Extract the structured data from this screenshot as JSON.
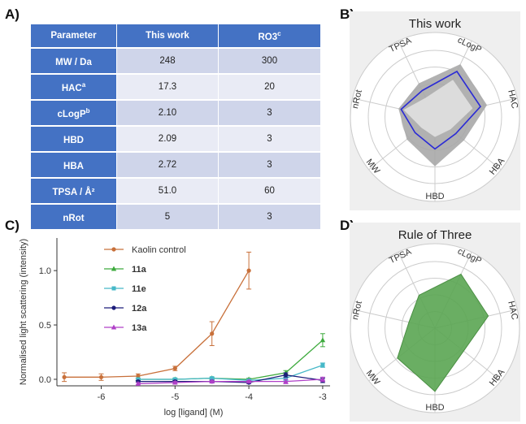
{
  "panels": {
    "a": "A)",
    "b": "B)",
    "c": "C)",
    "d": "D)"
  },
  "table": {
    "headers": [
      "Parameter",
      "This work",
      "RO3c"
    ],
    "header_parts": {
      "ro3_base": "RO3",
      "ro3_sup": "c"
    },
    "rows": [
      {
        "param": "MW / Da",
        "sup": "",
        "this_work": "248",
        "ro3": "300"
      },
      {
        "param": "HAC",
        "sup": "a",
        "this_work": "17.3",
        "ro3": "20"
      },
      {
        "param": "cLogP",
        "sup": "b",
        "this_work": "2.10",
        "ro3": "3"
      },
      {
        "param": "HBD",
        "sup": "",
        "this_work": "2.09",
        "ro3": "3"
      },
      {
        "param": "HBA",
        "sup": "",
        "this_work": "2.72",
        "ro3": "3"
      },
      {
        "param": "TPSA / Å²",
        "sup": "",
        "this_work": "51.0",
        "ro3": "60"
      },
      {
        "param": "nRot",
        "sup": "",
        "this_work": "5",
        "ro3": "3"
      }
    ],
    "colors": {
      "header": "#4472c4",
      "row_dark": "#cfd5ea",
      "row_light": "#e9ebf5"
    }
  },
  "chart_data": [
    {
      "type": "radar",
      "title": "This work",
      "axes": [
        "TPSA",
        "cLogP",
        "HAC",
        "HBA",
        "HBD",
        "MW",
        "nRot"
      ],
      "rings": 4,
      "series": [
        {
          "values": [
            0.44,
            0.76,
            0.7,
            0.4,
            0.48,
            0.38,
            0.52
          ],
          "color": "#2b2bd6",
          "style": "line"
        },
        {
          "values": [
            0.56,
            0.88,
            0.8,
            0.56,
            0.74,
            0.54,
            0.56
          ],
          "color": "#a8a8a8",
          "style": "band-outer"
        },
        {
          "values": [
            0.32,
            0.62,
            0.58,
            0.3,
            0.3,
            0.26,
            0.48
          ],
          "color": "#dcdcdc",
          "style": "band-inner"
        }
      ]
    },
    {
      "type": "line",
      "xlabel": "log [ligand] (M)",
      "ylabel": "Normalised light scattering (intensity)",
      "xlim": [
        -6.6,
        -2.9
      ],
      "ylim": [
        -0.06,
        1.3
      ],
      "xticks": [
        -6,
        -5,
        -4,
        -3
      ],
      "yticks": [
        0.0,
        0.5,
        1.0
      ],
      "ytick_labels": [
        "0.0",
        "0.5",
        "1.0"
      ],
      "legend_position": "top-left",
      "series": [
        {
          "name": "Kaolin control",
          "color": "#c8703a",
          "marker": "circle",
          "x": [
            -6.5,
            -6.0,
            -5.5,
            -5.0,
            -4.5,
            -4.0
          ],
          "y": [
            0.02,
            0.02,
            0.03,
            0.1,
            0.42,
            1.0
          ],
          "err": [
            0.04,
            0.03,
            0.02,
            0.02,
            0.11,
            0.17
          ]
        },
        {
          "name": "11a",
          "color": "#3daa3d",
          "marker": "triangle",
          "x": [
            -5.5,
            -5.0,
            -4.5,
            -4.0,
            -3.5,
            -3.0
          ],
          "y": [
            0.0,
            0.0,
            0.01,
            0.0,
            0.06,
            0.36
          ],
          "err": [
            0.01,
            0.01,
            0.01,
            0.01,
            0.02,
            0.06
          ]
        },
        {
          "name": "11e",
          "color": "#46b8c8",
          "marker": "square",
          "x": [
            -5.5,
            -5.0,
            -4.5,
            -4.0,
            -3.5,
            -3.0
          ],
          "y": [
            0.0,
            0.0,
            0.01,
            -0.01,
            0.01,
            0.13
          ],
          "err": [
            0.01,
            0.01,
            0.01,
            0.01,
            0.02,
            0.02
          ]
        },
        {
          "name": "12a",
          "color": "#1c1c7a",
          "marker": "circle",
          "x": [
            -5.5,
            -5.0,
            -4.5,
            -4.0,
            -3.5,
            -3.0
          ],
          "y": [
            -0.02,
            -0.02,
            -0.02,
            -0.03,
            0.04,
            -0.01
          ],
          "err": [
            0.01,
            0.01,
            0.01,
            0.01,
            0.02,
            0.02
          ]
        },
        {
          "name": "13a",
          "color": "#b040c8",
          "marker": "triangle",
          "x": [
            -5.5,
            -5.0,
            -4.5,
            -4.0,
            -3.5,
            -3.0
          ],
          "y": [
            -0.04,
            -0.03,
            -0.02,
            -0.02,
            -0.02,
            0.0
          ],
          "err": [
            0.01,
            0.01,
            0.01,
            0.01,
            0.02,
            0.02
          ]
        }
      ]
    },
    {
      "type": "radar",
      "title": "Rule of Three",
      "axes": [
        "TPSA",
        "cLogP",
        "HAC",
        "HBA",
        "HBD",
        "MW",
        "nRot"
      ],
      "rings": 4,
      "series": [
        {
          "values": [
            0.55,
            0.9,
            0.82,
            0.55,
            0.95,
            0.72,
            0.4
          ],
          "color": "#5aa552",
          "style": "fill"
        }
      ]
    }
  ]
}
